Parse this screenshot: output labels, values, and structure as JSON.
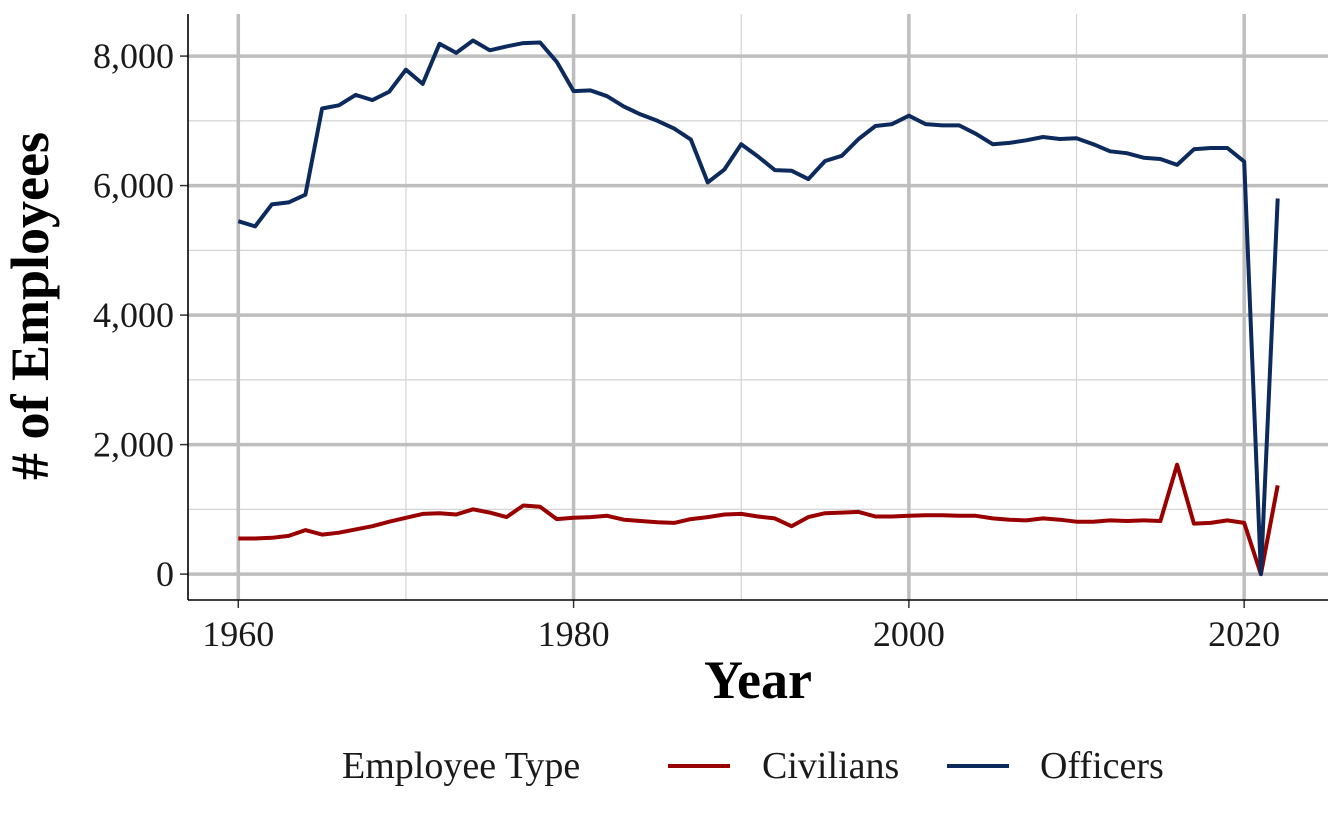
{
  "chart_data": {
    "type": "line",
    "title": "",
    "xlabel": "Year",
    "ylabel": "# of Employees",
    "xlim": [
      1957,
      2025
    ],
    "ylim": [
      -400,
      8650
    ],
    "x_ticks": [
      1960,
      1980,
      2000,
      2020
    ],
    "x_tick_labels": [
      "1960",
      "1980",
      "2000",
      "2020"
    ],
    "y_ticks": [
      0,
      2000,
      4000,
      6000,
      8000
    ],
    "y_tick_labels": [
      "0",
      "2,000",
      "4,000",
      "6,000",
      "8,000"
    ],
    "grid": true,
    "legend": {
      "title": "Employee Type",
      "position": "bottom"
    },
    "x": [
      1960,
      1961,
      1962,
      1963,
      1964,
      1965,
      1966,
      1967,
      1968,
      1969,
      1970,
      1971,
      1972,
      1973,
      1974,
      1975,
      1976,
      1977,
      1978,
      1979,
      1980,
      1981,
      1982,
      1983,
      1984,
      1985,
      1986,
      1987,
      1988,
      1989,
      1990,
      1991,
      1992,
      1993,
      1994,
      1995,
      1996,
      1997,
      1998,
      1999,
      2000,
      2001,
      2002,
      2003,
      2004,
      2005,
      2006,
      2007,
      2008,
      2009,
      2010,
      2011,
      2012,
      2013,
      2014,
      2015,
      2016,
      2017,
      2018,
      2019,
      2020,
      2021,
      2022
    ],
    "series": [
      {
        "name": "Civilians",
        "color": "#990000",
        "values": [
          550,
          550,
          560,
          590,
          680,
          610,
          640,
          690,
          740,
          810,
          870,
          930,
          940,
          920,
          1000,
          950,
          880,
          1060,
          1040,
          850,
          870,
          880,
          900,
          840,
          820,
          800,
          790,
          850,
          880,
          920,
          930,
          890,
          860,
          740,
          880,
          940,
          950,
          960,
          890,
          890,
          900,
          910,
          910,
          900,
          900,
          860,
          840,
          830,
          860,
          840,
          810,
          810,
          830,
          820,
          830,
          820,
          1690,
          780,
          790,
          830,
          790,
          0,
          1370
        ]
      },
      {
        "name": "Officers",
        "color": "#0c2a5c",
        "values": [
          5450,
          5370,
          5710,
          5740,
          5860,
          7190,
          7240,
          7400,
          7320,
          7450,
          7790,
          7570,
          8190,
          8050,
          8240,
          8090,
          8150,
          8200,
          8210,
          7910,
          7460,
          7470,
          7380,
          7220,
          7100,
          7000,
          6880,
          6710,
          6050,
          6250,
          6640,
          6450,
          6240,
          6230,
          6100,
          6380,
          6460,
          6720,
          6920,
          6950,
          7080,
          6950,
          6930,
          6930,
          6800,
          6640,
          6660,
          6700,
          6750,
          6720,
          6730,
          6640,
          6530,
          6500,
          6430,
          6410,
          6320,
          6560,
          6580,
          6580,
          6370,
          0,
          5800
        ]
      }
    ]
  }
}
